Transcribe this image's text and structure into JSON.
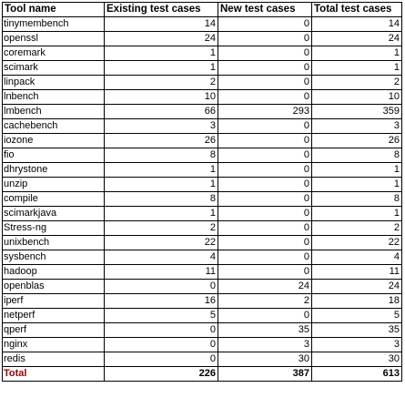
{
  "table": {
    "headers": [
      "Tool name",
      "Existing test cases",
      "New test cases",
      "Total test cases"
    ],
    "rows": [
      {
        "name": "tinymembench",
        "existing": "14",
        "new": "0",
        "total": "14"
      },
      {
        "name": "openssl",
        "existing": "24",
        "new": "0",
        "total": "24"
      },
      {
        "name": "coremark",
        "existing": "1",
        "new": "0",
        "total": "1"
      },
      {
        "name": "scimark",
        "existing": "1",
        "new": "0",
        "total": "1"
      },
      {
        "name": "linpack",
        "existing": "2",
        "new": "0",
        "total": "2"
      },
      {
        "name": "lnbench",
        "existing": "10",
        "new": "0",
        "total": "10"
      },
      {
        "name": "lmbench",
        "existing": "66",
        "new": "293",
        "total": "359"
      },
      {
        "name": "cachebench",
        "existing": "3",
        "new": "0",
        "total": "3"
      },
      {
        "name": "iozone",
        "existing": "26",
        "new": "0",
        "total": "26"
      },
      {
        "name": "fio",
        "existing": "8",
        "new": "0",
        "total": "8"
      },
      {
        "name": "dhrystone",
        "existing": "1",
        "new": "0",
        "total": "1"
      },
      {
        "name": "unzip",
        "existing": "1",
        "new": "0",
        "total": "1"
      },
      {
        "name": "compile",
        "existing": "8",
        "new": "0",
        "total": "8"
      },
      {
        "name": "scimarkjava",
        "existing": "1",
        "new": "0",
        "total": "1"
      },
      {
        "name": "Stress-ng",
        "existing": "2",
        "new": "0",
        "total": "2"
      },
      {
        "name": "unixbench",
        "existing": "22",
        "new": "0",
        "total": "22"
      },
      {
        "name": "sysbench",
        "existing": "4",
        "new": "0",
        "total": "4"
      },
      {
        "name": "hadoop",
        "existing": "11",
        "new": "0",
        "total": "11"
      },
      {
        "name": "openblas",
        "existing": "0",
        "new": "24",
        "total": "24"
      },
      {
        "name": "iperf",
        "existing": "16",
        "new": "2",
        "total": "18"
      },
      {
        "name": "netperf",
        "existing": "5",
        "new": "0",
        "total": "5"
      },
      {
        "name": "qperf",
        "existing": "0",
        "new": "35",
        "total": "35"
      },
      {
        "name": "nginx",
        "existing": "0",
        "new": "3",
        "total": "3"
      },
      {
        "name": "redis",
        "existing": "0",
        "new": "30",
        "total": "30"
      }
    ],
    "total_row": {
      "name": "Total",
      "existing": "226",
      "new": "387",
      "total": "613"
    }
  },
  "colors": {
    "border": "#000000",
    "total_label": "#9c0006",
    "background": "#ffffff"
  }
}
